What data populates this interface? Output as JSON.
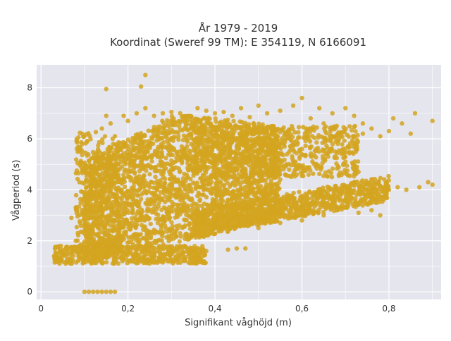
{
  "chart_data": {
    "type": "scatter",
    "title_line1": "År 1979 - 2019",
    "title_line2": "Koordinat (Sweref 99 TM): E 354119, N 6166091",
    "xlabel": "Signifikant våghöjd (m)",
    "ylabel": "Vågperiod (s)",
    "xlim": [
      -0.01,
      0.92
    ],
    "ylim": [
      -0.3,
      8.9
    ],
    "xticks": [
      0,
      0.2,
      0.4,
      0.6,
      0.8
    ],
    "xtick_labels": [
      "0",
      "0,2",
      "0,4",
      "0,6",
      "0,8"
    ],
    "yticks": [
      0,
      2,
      4,
      6,
      8
    ],
    "ytick_labels": [
      "0",
      "2",
      "4",
      "6",
      "8"
    ],
    "grid": true,
    "colors": {
      "marker": "#d4a520",
      "plot_bg": "#e5e5ee",
      "grid": "#ffffff",
      "text": "#333333"
    },
    "series": [
      {
        "values_xy": [
          [
            0.03,
            1.4
          ],
          [
            0.035,
            1.5
          ],
          [
            0.04,
            1.25
          ],
          [
            0.05,
            1.45
          ],
          [
            0.06,
            1.3
          ],
          [
            0.07,
            2.9
          ],
          [
            0.08,
            2.0
          ],
          [
            0.08,
            3.3
          ],
          [
            0.09,
            2.7
          ],
          [
            0.1,
            0.0
          ],
          [
            0.11,
            0.0
          ],
          [
            0.12,
            0.0
          ],
          [
            0.13,
            0.0
          ],
          [
            0.14,
            0.0
          ],
          [
            0.15,
            0.0
          ],
          [
            0.16,
            0.0
          ],
          [
            0.17,
            0.0
          ],
          [
            0.1,
            2.4
          ],
          [
            0.11,
            3.8
          ],
          [
            0.12,
            4.2
          ],
          [
            0.13,
            5.5
          ],
          [
            0.14,
            6.4
          ],
          [
            0.15,
            6.9
          ],
          [
            0.15,
            7.95
          ],
          [
            0.16,
            6.6
          ],
          [
            0.17,
            6.1
          ],
          [
            0.19,
            6.9
          ],
          [
            0.2,
            6.7
          ],
          [
            0.22,
            7.0
          ],
          [
            0.23,
            8.05
          ],
          [
            0.24,
            8.5
          ],
          [
            0.24,
            7.2
          ],
          [
            0.26,
            6.9
          ],
          [
            0.28,
            7.0
          ],
          [
            0.3,
            7.05
          ],
          [
            0.32,
            7.0
          ],
          [
            0.34,
            6.9
          ],
          [
            0.36,
            7.2
          ],
          [
            0.38,
            7.1
          ],
          [
            0.4,
            7.0
          ],
          [
            0.42,
            7.05
          ],
          [
            0.44,
            6.9
          ],
          [
            0.46,
            7.2
          ],
          [
            0.48,
            6.85
          ],
          [
            0.5,
            7.3
          ],
          [
            0.52,
            7.0
          ],
          [
            0.55,
            7.1
          ],
          [
            0.58,
            7.3
          ],
          [
            0.6,
            7.6
          ],
          [
            0.62,
            6.8
          ],
          [
            0.64,
            7.2
          ],
          [
            0.65,
            6.6
          ],
          [
            0.67,
            7.0
          ],
          [
            0.7,
            7.2
          ],
          [
            0.72,
            6.9
          ],
          [
            0.74,
            6.6
          ],
          [
            0.76,
            6.4
          ],
          [
            0.78,
            6.1
          ],
          [
            0.8,
            6.3
          ],
          [
            0.81,
            6.8
          ],
          [
            0.83,
            6.6
          ],
          [
            0.85,
            6.2
          ],
          [
            0.86,
            7.0
          ],
          [
            0.9,
            6.7
          ],
          [
            0.25,
            1.6
          ],
          [
            0.3,
            1.6
          ],
          [
            0.35,
            1.6
          ],
          [
            0.38,
            1.6
          ],
          [
            0.43,
            1.65
          ],
          [
            0.45,
            1.7
          ],
          [
            0.47,
            1.7
          ],
          [
            0.5,
            2.5
          ],
          [
            0.55,
            2.7
          ],
          [
            0.6,
            2.8
          ],
          [
            0.65,
            3.0
          ],
          [
            0.68,
            3.2
          ],
          [
            0.7,
            3.3
          ],
          [
            0.73,
            3.1
          ],
          [
            0.76,
            3.2
          ],
          [
            0.78,
            3.0
          ],
          [
            0.75,
            3.8
          ],
          [
            0.78,
            3.9
          ],
          [
            0.8,
            4.0
          ],
          [
            0.82,
            4.1
          ],
          [
            0.84,
            4.0
          ],
          [
            0.87,
            4.1
          ],
          [
            0.89,
            4.3
          ],
          [
            0.9,
            4.2
          ],
          [
            0.72,
            4.8
          ],
          [
            0.73,
            4.7
          ],
          [
            0.7,
            5.1
          ],
          [
            0.66,
            5.3
          ],
          [
            0.6,
            5.6
          ],
          [
            0.56,
            5.7
          ],
          [
            0.52,
            5.4
          ],
          [
            0.57,
            6.3
          ],
          [
            0.62,
            6.4
          ],
          [
            0.68,
            6.5
          ],
          [
            0.74,
            6.2
          ],
          [
            0.55,
            4.4
          ],
          [
            0.5,
            4.3
          ],
          [
            0.45,
            3.6
          ],
          [
            0.42,
            4.6
          ],
          [
            0.4,
            5.2
          ]
        ]
      }
    ]
  }
}
